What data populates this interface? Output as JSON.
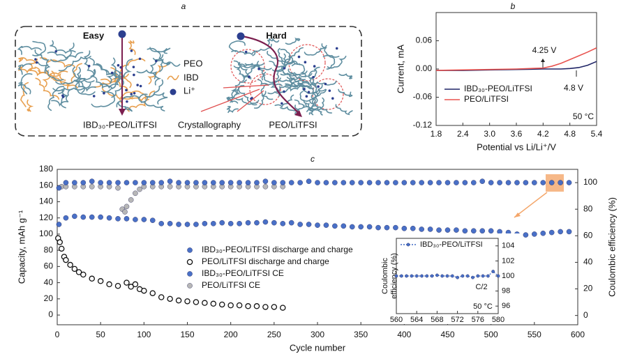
{
  "panel_labels": [
    "a",
    "b",
    "c"
  ],
  "diagram": {
    "easy": "Easy",
    "hard": "Hard",
    "peo": "PEO",
    "ibd": "IBD",
    "li": "Li⁺",
    "left_label": "IBD₃₀-PEO/LiTFSI",
    "middle_label": "Crystallography",
    "right_label": "PEO/LiTFSI"
  },
  "chart_data": [
    {
      "type": "line",
      "xlabel": "Potential vs Li/Li⁺/V",
      "ylabel": "Current, mA",
      "xlim": [
        1.8,
        5.4
      ],
      "xticks": [
        1.8,
        2.4,
        {
          "value": 3.0,
          "label": "3.0"
        },
        3.6,
        4.2,
        4.8,
        5.4
      ],
      "ylim": [
        -0.12,
        0.12
      ],
      "yticks": [
        0.06,
        {
          "value": 0,
          "label": "0.00"
        },
        -0.06,
        -0.12
      ],
      "legend": "lower left",
      "annotations": [
        "4.25 V",
        "4.8 V",
        "50 °C"
      ],
      "series": [
        {
          "name": "IBD₃₀-PEO/LiTFSI",
          "color": "#1f2466",
          "x": [
            1.8,
            2.4,
            3.0,
            3.6,
            4.2,
            4.4,
            4.6,
            4.8,
            5.0,
            5.2,
            5.4
          ],
          "values": [
            -0.003,
            -0.003,
            -0.002,
            -0.001,
            0,
            0,
            0,
            0.001,
            0.003,
            0.008,
            0.016
          ]
        },
        {
          "name": "PEO/LiTFSI",
          "color": "#e8534f",
          "x": [
            1.8,
            2.4,
            3.0,
            3.6,
            4.2,
            4.4,
            4.6,
            4.8,
            5.0,
            5.2,
            5.4
          ],
          "values": [
            -0.003,
            -0.002,
            -0.001,
            0,
            0.002,
            0.006,
            0.012,
            0.02,
            0.028,
            0.036,
            0.045
          ]
        }
      ]
    },
    {
      "type": "scatter",
      "xlabel": "Cycle number",
      "ylabel": "Capacity, mAh g⁻¹",
      "y2label": "Coulombic efficiency (%)",
      "xlim": [
        0,
        600
      ],
      "xticks": [
        0,
        50,
        100,
        150,
        200,
        250,
        300,
        350,
        400,
        450,
        500,
        550,
        600
      ],
      "ylim": [
        -12,
        180
      ],
      "yticks": [
        0,
        20,
        40,
        60,
        80,
        100,
        120,
        140,
        160,
        180
      ],
      "y2lim": [
        -7,
        110
      ],
      "y2ticks": [
        0,
        20,
        40,
        60,
        80,
        100
      ],
      "legend": "center",
      "series": [
        {
          "name": "PEO/LiTFSI CE",
          "color": "#b3b3b3",
          "axis": "y2",
          "marker": "filled",
          "x": [
            5,
            10,
            20,
            30,
            40,
            50,
            60,
            70,
            75,
            78,
            80,
            85,
            90,
            95,
            100,
            110,
            120,
            130,
            140,
            150,
            160,
            170,
            180,
            190,
            200,
            210,
            220,
            230,
            240,
            250,
            260
          ],
          "values": [
            97,
            97,
            97,
            97,
            97,
            97,
            97,
            96,
            80,
            78,
            82,
            87,
            92,
            95,
            97,
            97,
            97,
            97,
            97,
            97,
            97,
            97,
            97,
            97,
            97,
            97,
            97,
            97,
            97,
            97,
            97
          ]
        },
        {
          "name": "IBD₃₀-PEO/LiTFSI CE",
          "color": "#3f68c4",
          "axis": "y2",
          "marker": "filled",
          "x": [
            2,
            10,
            20,
            30,
            40,
            50,
            60,
            70,
            80,
            90,
            100,
            110,
            120,
            130,
            140,
            150,
            160,
            170,
            180,
            190,
            200,
            210,
            220,
            230,
            240,
            250,
            260,
            270,
            280,
            290,
            300,
            310,
            320,
            330,
            340,
            350,
            360,
            370,
            380,
            390,
            400,
            410,
            420,
            430,
            440,
            450,
            460,
            470,
            480,
            490,
            500,
            510,
            520,
            530,
            540,
            550,
            560,
            570,
            580,
            590
          ],
          "values": [
            96,
            100,
            100,
            100,
            101,
            100,
            100,
            100,
            100,
            100,
            100,
            100,
            100,
            101,
            100,
            100,
            100,
            100,
            100,
            100,
            100,
            100,
            100,
            100,
            101,
            100,
            100,
            100,
            100,
            101,
            100,
            100,
            100,
            100,
            100,
            100,
            100,
            100,
            100,
            100,
            100,
            100,
            100,
            100,
            100,
            100,
            100,
            100,
            100,
            101,
            100,
            100,
            100,
            100,
            100,
            100,
            100,
            100,
            100,
            100
          ]
        },
        {
          "name": "IBD₃₀-PEO/LiTFSI discharge and charge",
          "color": "#3f68c4",
          "marker": "filled",
          "x": [
            2,
            10,
            20,
            30,
            40,
            50,
            60,
            70,
            80,
            90,
            100,
            110,
            120,
            130,
            140,
            150,
            160,
            170,
            180,
            190,
            200,
            210,
            220,
            230,
            240,
            250,
            260,
            270,
            280,
            290,
            300,
            310,
            320,
            330,
            340,
            350,
            360,
            370,
            380,
            390,
            400,
            410,
            420,
            430,
            440,
            450,
            460,
            470,
            480,
            490,
            500,
            510,
            520,
            530,
            540,
            550,
            560,
            570,
            580,
            590
          ],
          "values": [
            112,
            120,
            122,
            121,
            121,
            121,
            120,
            119,
            119,
            118,
            118,
            117,
            113,
            113,
            112,
            112,
            112,
            113,
            113,
            114,
            113,
            113,
            114,
            114,
            115,
            114,
            113,
            114,
            112,
            112,
            111,
            111,
            110,
            110,
            109,
            109,
            109,
            108,
            108,
            108,
            107,
            107,
            106,
            106,
            105,
            105,
            105,
            104,
            104,
            104,
            104,
            103,
            102,
            100,
            99,
            100,
            101,
            102,
            103,
            103
          ]
        },
        {
          "name": "PEO/LiTFSI discharge and charge",
          "color": "#111111",
          "marker": "open",
          "x": [
            1,
            3,
            5,
            8,
            10,
            15,
            20,
            25,
            30,
            40,
            50,
            60,
            70,
            80,
            85,
            90,
            95,
            100,
            110,
            120,
            130,
            140,
            150,
            160,
            170,
            180,
            190,
            200,
            210,
            220,
            230,
            240,
            250,
            260
          ],
          "values": [
            95,
            90,
            82,
            72,
            68,
            62,
            57,
            53,
            50,
            45,
            42,
            38,
            36,
            40,
            35,
            38,
            32,
            30,
            27,
            22,
            20,
            18,
            17,
            16,
            15,
            14,
            13,
            12,
            12,
            11,
            11,
            10,
            10,
            9
          ]
        }
      ]
    },
    {
      "type": "line",
      "ylabel": [
        "Coulombic",
        "efficiency (%)"
      ],
      "y_axis_side": "right",
      "xlim": [
        560,
        580
      ],
      "xticks": [
        560,
        564,
        568,
        572,
        576,
        580
      ],
      "ylim": [
        95,
        105
      ],
      "yticks": [
        96,
        98,
        100,
        102,
        104
      ],
      "legend": "upper left",
      "annotations": [
        "C/2",
        "50 °C"
      ],
      "series": [
        {
          "name": "IBD₃₀-PEO/LiTFSI",
          "color": "#3f68c4",
          "marker": "filled",
          "linestyle": "dotted",
          "x": [
            560,
            561,
            562,
            563,
            564,
            565,
            566,
            567,
            568,
            569,
            570,
            571,
            572,
            573,
            574,
            575,
            576,
            577,
            578,
            579,
            580
          ],
          "values": [
            100,
            100,
            100,
            100,
            100,
            100,
            100,
            100,
            100.1,
            100,
            100,
            100,
            99.8,
            100,
            100,
            99.8,
            100,
            100,
            100,
            100.6,
            100
          ]
        }
      ]
    }
  ]
}
